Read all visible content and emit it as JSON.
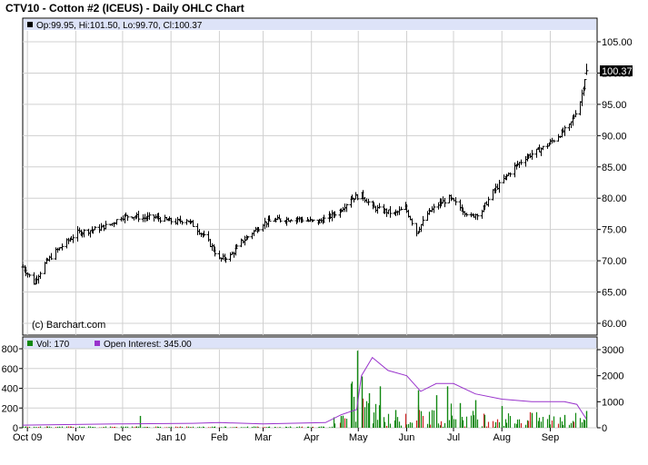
{
  "title": "CTV10 - Cotton #2 (ICEUS) - Daily OHLC Chart",
  "price_legend": "Op:99.95, Hi:101.50, Lo:99.70, Cl:100.37",
  "watermark": "(c) Barchart.com",
  "last_price_label": "100.37",
  "volume_legend": "Vol: 170",
  "oi_legend": "Open Interest: 345.00",
  "colors": {
    "legend_bg": "#dde3f8",
    "price_bar": "#000000",
    "volume_bar": "#118811",
    "volume_bar_alt": "#cc2222",
    "open_interest": "#9933cc",
    "grid": "#d0d0d0"
  },
  "chart_data": [
    {
      "type": "ohlc",
      "x_ticks": [
        "Oct 09",
        "Nov",
        "Dec",
        "Jan 10",
        "Feb",
        "Mar",
        "Apr",
        "May",
        "Jun",
        "Jul",
        "Aug",
        "Sep"
      ],
      "y_ticks": [
        "105.00",
        "100.00",
        "95.00",
        "90.00",
        "85.00",
        "80.00",
        "75.00",
        "70.00",
        "65.00",
        "60.00"
      ],
      "ylim": [
        58,
        107
      ],
      "last": {
        "open": 99.95,
        "high": 101.5,
        "low": 99.7,
        "close": 100.37
      },
      "series_approx_close": [
        {
          "x": "2009-09-28",
          "y": 69.0
        },
        {
          "x": "2009-10-05",
          "y": 66.5
        },
        {
          "x": "2009-10-12",
          "y": 69.5
        },
        {
          "x": "2009-10-19",
          "y": 71.5
        },
        {
          "x": "2009-10-26",
          "y": 73.0
        },
        {
          "x": "2009-11-02",
          "y": 74.5
        },
        {
          "x": "2009-11-09",
          "y": 74.8
        },
        {
          "x": "2009-11-16",
          "y": 75.2
        },
        {
          "x": "2009-11-23",
          "y": 75.8
        },
        {
          "x": "2009-11-30",
          "y": 77.0
        },
        {
          "x": "2009-12-07",
          "y": 77.2
        },
        {
          "x": "2009-12-14",
          "y": 76.8
        },
        {
          "x": "2009-12-21",
          "y": 77.0
        },
        {
          "x": "2009-12-28",
          "y": 76.5
        },
        {
          "x": "2010-01-04",
          "y": 76.2
        },
        {
          "x": "2010-01-11",
          "y": 76.6
        },
        {
          "x": "2010-01-18",
          "y": 75.0
        },
        {
          "x": "2010-01-25",
          "y": 73.0
        },
        {
          "x": "2010-02-01",
          "y": 70.2
        },
        {
          "x": "2010-02-08",
          "y": 70.8
        },
        {
          "x": "2010-02-15",
          "y": 73.0
        },
        {
          "x": "2010-02-22",
          "y": 74.5
        },
        {
          "x": "2010-03-01",
          "y": 76.0
        },
        {
          "x": "2010-03-08",
          "y": 76.5
        },
        {
          "x": "2010-03-15",
          "y": 76.6
        },
        {
          "x": "2010-03-22",
          "y": 76.8
        },
        {
          "x": "2010-03-29",
          "y": 76.4
        },
        {
          "x": "2010-04-05",
          "y": 76.2
        },
        {
          "x": "2010-04-12",
          "y": 77.0
        },
        {
          "x": "2010-04-19",
          "y": 78.0
        },
        {
          "x": "2010-04-26",
          "y": 80.0
        },
        {
          "x": "2010-05-03",
          "y": 80.5
        },
        {
          "x": "2010-05-10",
          "y": 78.5
        },
        {
          "x": "2010-05-17",
          "y": 78.0
        },
        {
          "x": "2010-05-24",
          "y": 77.5
        },
        {
          "x": "2010-05-31",
          "y": 78.5
        },
        {
          "x": "2010-06-07",
          "y": 74.5
        },
        {
          "x": "2010-06-14",
          "y": 77.5
        },
        {
          "x": "2010-06-21",
          "y": 79.0
        },
        {
          "x": "2010-06-28",
          "y": 80.0
        },
        {
          "x": "2010-07-05",
          "y": 78.5
        },
        {
          "x": "2010-07-12",
          "y": 77.0
        },
        {
          "x": "2010-07-19",
          "y": 78.0
        },
        {
          "x": "2010-07-26",
          "y": 81.0
        },
        {
          "x": "2010-08-02",
          "y": 83.0
        },
        {
          "x": "2010-08-09",
          "y": 85.0
        },
        {
          "x": "2010-08-16",
          "y": 86.5
        },
        {
          "x": "2010-08-23",
          "y": 87.5
        },
        {
          "x": "2010-08-30",
          "y": 88.5
        },
        {
          "x": "2010-09-06",
          "y": 90.0
        },
        {
          "x": "2010-09-13",
          "y": 91.5
        },
        {
          "x": "2010-09-20",
          "y": 95.5
        },
        {
          "x": "2010-09-24",
          "y": 100.37
        }
      ]
    },
    {
      "type": "bar+line",
      "y_ticks_left": [
        "800",
        "600",
        "400",
        "200",
        "0"
      ],
      "y_ticks_right": [
        "3000",
        "2000",
        "1000",
        "0"
      ],
      "series": [
        {
          "name": "Vol",
          "values_approx": [
            {
              "x": "2009-12-12",
              "y": 120
            },
            {
              "x": "2010-04-20",
              "y": 120
            },
            {
              "x": "2010-04-30",
              "y": 780
            },
            {
              "x": "2010-05-03",
              "y": 520
            },
            {
              "x": "2010-05-08",
              "y": 350
            },
            {
              "x": "2010-05-15",
              "y": 420
            },
            {
              "x": "2010-05-25",
              "y": 180
            },
            {
              "x": "2010-06-08",
              "y": 380
            },
            {
              "x": "2010-06-20",
              "y": 330
            },
            {
              "x": "2010-06-27",
              "y": 420
            },
            {
              "x": "2010-07-05",
              "y": 250
            },
            {
              "x": "2010-07-15",
              "y": 280
            },
            {
              "x": "2010-08-01",
              "y": 220
            },
            {
              "x": "2010-08-20",
              "y": 150
            },
            {
              "x": "2010-09-10",
              "y": 130
            },
            {
              "x": "2010-09-24",
              "y": 170
            }
          ]
        },
        {
          "name": "Open Interest",
          "values_approx": [
            {
              "x": "2009-09-28",
              "y": 100
            },
            {
              "x": "2009-12-01",
              "y": 150
            },
            {
              "x": "2010-01-15",
              "y": 170
            },
            {
              "x": "2010-02-01",
              "y": 200
            },
            {
              "x": "2010-03-01",
              "y": 150
            },
            {
              "x": "2010-04-10",
              "y": 200
            },
            {
              "x": "2010-04-20",
              "y": 500
            },
            {
              "x": "2010-04-30",
              "y": 700
            },
            {
              "x": "2010-05-03",
              "y": 2000
            },
            {
              "x": "2010-05-10",
              "y": 2700
            },
            {
              "x": "2010-05-20",
              "y": 2200
            },
            {
              "x": "2010-06-01",
              "y": 2000
            },
            {
              "x": "2010-06-10",
              "y": 1400
            },
            {
              "x": "2010-06-20",
              "y": 1700
            },
            {
              "x": "2010-07-01",
              "y": 1700
            },
            {
              "x": "2010-07-15",
              "y": 1300
            },
            {
              "x": "2010-08-01",
              "y": 1100
            },
            {
              "x": "2010-08-20",
              "y": 1000
            },
            {
              "x": "2010-09-10",
              "y": 1000
            },
            {
              "x": "2010-09-18",
              "y": 900
            },
            {
              "x": "2010-09-24",
              "y": 345
            }
          ]
        }
      ]
    }
  ]
}
